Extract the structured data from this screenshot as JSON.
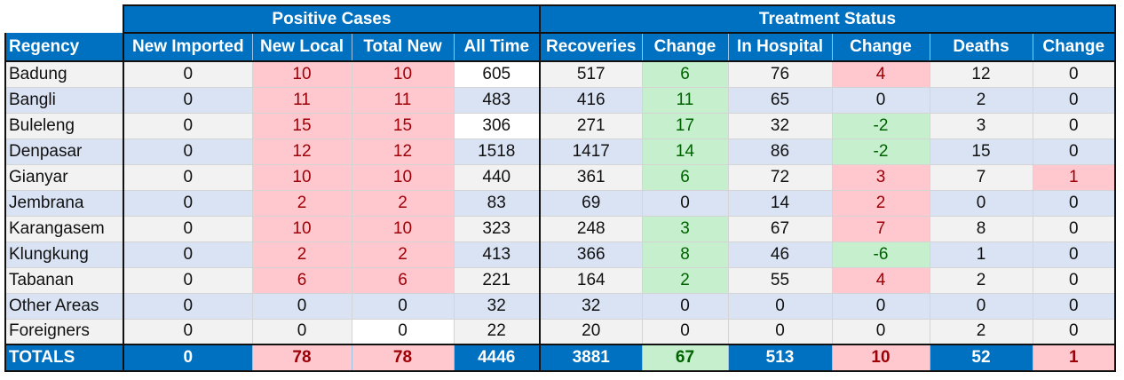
{
  "groups": {
    "positive_cases": "Positive Cases",
    "treatment_status": "Treatment Status"
  },
  "columns": [
    "Regency",
    "New Imported",
    "New Local",
    "Total New",
    "All Time",
    "Recoveries",
    "Change",
    "In Hospital",
    "Change",
    "Deaths",
    "Change"
  ],
  "rows": [
    [
      "Badung",
      "0",
      "10",
      "10",
      "605",
      "517",
      "6",
      "76",
      "4",
      "12",
      "0"
    ],
    [
      "Bangli",
      "0",
      "11",
      "11",
      "483",
      "416",
      "11",
      "65",
      "0",
      "2",
      "0"
    ],
    [
      "Buleleng",
      "0",
      "15",
      "15",
      "306",
      "271",
      "17",
      "32",
      "-2",
      "3",
      "0"
    ],
    [
      "Denpasar",
      "0",
      "12",
      "12",
      "1518",
      "1417",
      "14",
      "86",
      "-2",
      "15",
      "0"
    ],
    [
      "Gianyar",
      "0",
      "10",
      "10",
      "440",
      "361",
      "6",
      "72",
      "3",
      "7",
      "1"
    ],
    [
      "Jembrana",
      "0",
      "2",
      "2",
      "83",
      "69",
      "0",
      "14",
      "2",
      "0",
      "0"
    ],
    [
      "Karangasem",
      "0",
      "10",
      "10",
      "323",
      "248",
      "3",
      "67",
      "7",
      "8",
      "0"
    ],
    [
      "Klungkung",
      "0",
      "2",
      "2",
      "413",
      "366",
      "8",
      "46",
      "-6",
      "1",
      "0"
    ],
    [
      "Tabanan",
      "0",
      "6",
      "6",
      "221",
      "164",
      "2",
      "55",
      "4",
      "2",
      "0"
    ],
    [
      "Other Areas",
      "0",
      "0",
      "0",
      "32",
      "32",
      "0",
      "0",
      "0",
      "0",
      "0"
    ],
    [
      "Foreigners",
      "0",
      "0",
      "0",
      "22",
      "20",
      "0",
      "0",
      "0",
      "2",
      "0"
    ]
  ],
  "totals": [
    "TOTALS",
    "0",
    "78",
    "78",
    "4446",
    "3881",
    "67",
    "513",
    "10",
    "52",
    "1"
  ],
  "colors": {
    "header_blue": "#0070c0",
    "stripe_gray": "#f2f2f2",
    "stripe_blue": "#dae3f3",
    "red_fill": "#ffc7ce",
    "red_text": "#9c0006",
    "green_fill": "#c6efce",
    "green_text": "#006100"
  }
}
